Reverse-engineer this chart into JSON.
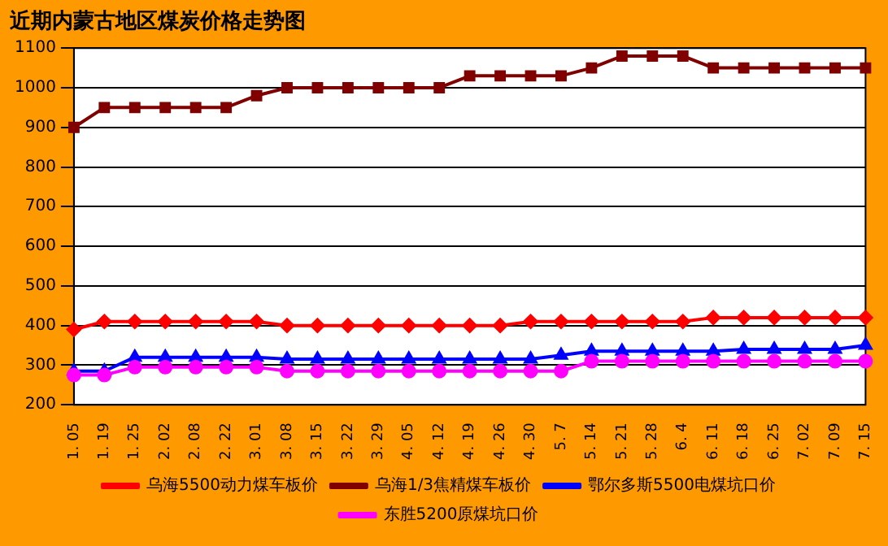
{
  "chart_data": {
    "type": "line",
    "title": "近期内蒙古地区煤炭价格走势图",
    "categories": [
      "1. 05",
      "1. 19",
      "1. 25",
      "2. 02",
      "2. 08",
      "2. 22",
      "3. 01",
      "3. 08",
      "3. 15",
      "3. 22",
      "3. 29",
      "4. 05",
      "4. 12",
      "4. 19",
      "4. 26",
      "4. 30",
      "5. 7",
      "5. 14",
      "5. 21",
      "5. 28",
      "6. 4",
      "6. 11",
      "6. 18",
      "6. 25",
      "7. 02",
      "7. 09",
      "7. 15"
    ],
    "series": [
      {
        "name": "乌海5500动力煤车板价",
        "color": "#ff0000",
        "marker": "diamond",
        "values": [
          390,
          410,
          410,
          410,
          410,
          410,
          410,
          400,
          400,
          400,
          400,
          400,
          400,
          400,
          400,
          410,
          410,
          410,
          410,
          410,
          410,
          420,
          420,
          420,
          420,
          420,
          420
        ]
      },
      {
        "name": "乌海1/3焦精煤车板价",
        "color": "#800000",
        "marker": "square",
        "values": [
          900,
          950,
          950,
          950,
          950,
          950,
          980,
          1000,
          1000,
          1000,
          1000,
          1000,
          1000,
          1030,
          1030,
          1030,
          1030,
          1050,
          1080,
          1080,
          1080,
          1050,
          1050,
          1050,
          1050,
          1050,
          1050
        ]
      },
      {
        "name": "鄂尔多斯5500电煤坑口价",
        "color": "#0000ff",
        "marker": "triangle",
        "values": [
          285,
          285,
          320,
          320,
          320,
          320,
          320,
          315,
          315,
          315,
          315,
          315,
          315,
          315,
          315,
          315,
          325,
          335,
          335,
          335,
          335,
          335,
          340,
          340,
          340,
          340,
          350
        ]
      },
      {
        "name": "东胜5200原煤坑口价",
        "color": "#ff00ff",
        "marker": "circle",
        "values": [
          275,
          275,
          295,
          295,
          295,
          295,
          295,
          285,
          285,
          285,
          285,
          285,
          285,
          285,
          285,
          285,
          285,
          310,
          310,
          310,
          310,
          310,
          310,
          310,
          310,
          310,
          310
        ]
      }
    ],
    "ylim": [
      200,
      1100
    ],
    "yticks": [
      200,
      300,
      400,
      500,
      600,
      700,
      800,
      900,
      1000,
      1100
    ],
    "grid": "y",
    "legend": "bottom",
    "line_style": "solid"
  }
}
